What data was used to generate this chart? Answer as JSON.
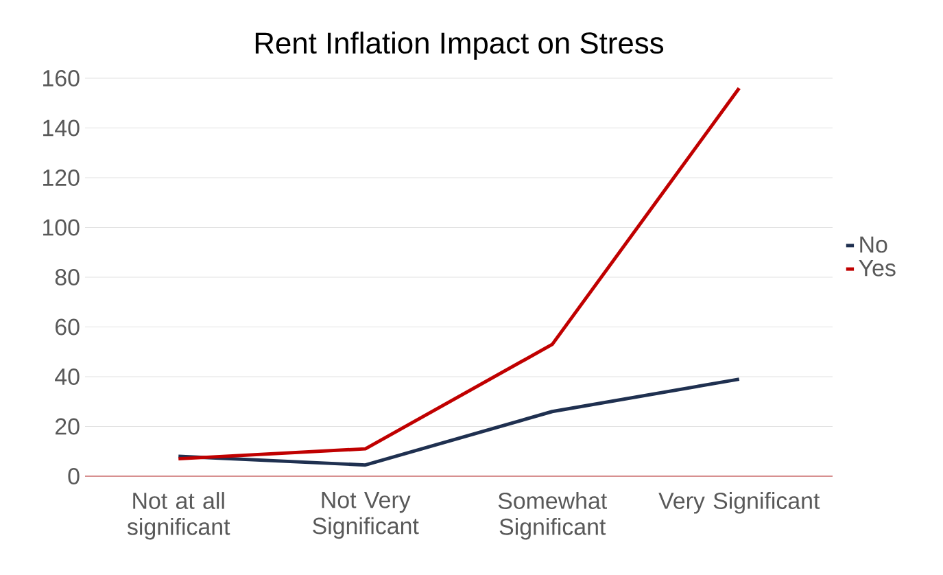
{
  "chart_data": {
    "type": "line",
    "title": "Rent Inflation Impact on Stress",
    "categories": [
      "Not at all significant",
      "Not Very Significant",
      "Somewhat Significant",
      "Very Significant"
    ],
    "series": [
      {
        "name": "No",
        "color": "#1f3050",
        "values": [
          8,
          4.5,
          26,
          39
        ]
      },
      {
        "name": "Yes",
        "color": "#c00000",
        "values": [
          7,
          11,
          53,
          156
        ]
      }
    ],
    "ylim": [
      0,
      160
    ],
    "yticks": [
      0,
      20,
      40,
      60,
      80,
      100,
      120,
      140,
      160
    ],
    "grid": "y",
    "legend": "right",
    "marker": "none",
    "line_style": "solid"
  }
}
